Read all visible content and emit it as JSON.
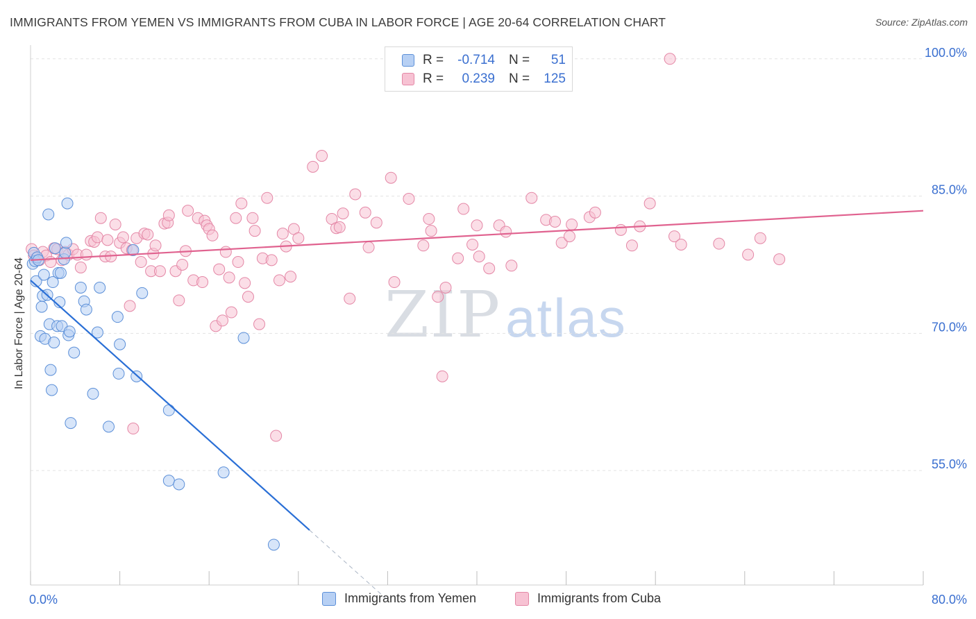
{
  "title": "IMMIGRANTS FROM YEMEN VS IMMIGRANTS FROM CUBA IN LABOR FORCE | AGE 20-64 CORRELATION CHART",
  "source": "Source: ZipAtlas.com",
  "watermark": {
    "zip": "ZIP",
    "atlas": "atlas"
  },
  "legend": {
    "r_label": "R =",
    "n_label": "N =",
    "rows": [
      {
        "r": "-0.714",
        "n": "51"
      },
      {
        "r": "0.239",
        "n": "125"
      }
    ]
  },
  "colors": {
    "yemen_fill": "#b7d0f4",
    "yemen_stroke": "#5b8fd8",
    "yemen_line": "#2a6fd6",
    "cuba_fill": "#f7c2d3",
    "cuba_stroke": "#e487a6",
    "cuba_line": "#e0628f",
    "grid": "#e3e3e3",
    "tick_label": "#3a6fd0"
  },
  "chart_data": {
    "type": "scatter",
    "title": "IMMIGRANTS FROM YEMEN VS IMMIGRANTS FROM CUBA IN LABOR FORCE | AGE 20-64 CORRELATION CHART",
    "xlabel": "",
    "ylabel": "In Labor Force | Age 20-64",
    "xlim": [
      0,
      80
    ],
    "ylim": [
      42.5,
      101.5
    ],
    "x_tick_labels": [
      "0.0%",
      "80.0%"
    ],
    "y_ticks": [
      55,
      70,
      85,
      100
    ],
    "y_tick_labels": [
      "55.0%",
      "70.0%",
      "85.0%",
      "100.0%"
    ],
    "grid": true,
    "legend_position": "bottom-center",
    "series": [
      {
        "name": "Immigrants from Yemen",
        "r": -0.714,
        "n": 51,
        "trend": {
          "x0": 0,
          "y0": 75.8,
          "x1": 25,
          "y1": 48.5,
          "dash_to_x": 32
        },
        "points": [
          [
            0.2,
            77.6
          ],
          [
            0.3,
            78.8
          ],
          [
            0.4,
            77.9
          ],
          [
            0.5,
            75.7
          ],
          [
            0.6,
            78.3
          ],
          [
            0.7,
            78.0
          ],
          [
            0.9,
            69.7
          ],
          [
            1.0,
            72.9
          ],
          [
            1.1,
            74.1
          ],
          [
            1.2,
            76.4
          ],
          [
            1.3,
            69.4
          ],
          [
            1.5,
            74.2
          ],
          [
            1.6,
            83.0
          ],
          [
            1.7,
            71.0
          ],
          [
            1.8,
            66.0
          ],
          [
            1.9,
            63.8
          ],
          [
            2.0,
            75.6
          ],
          [
            2.1,
            69.0
          ],
          [
            2.2,
            79.3
          ],
          [
            2.4,
            70.8
          ],
          [
            2.5,
            76.6
          ],
          [
            2.6,
            73.4
          ],
          [
            2.7,
            76.6
          ],
          [
            2.8,
            70.8
          ],
          [
            3.0,
            78.1
          ],
          [
            3.1,
            78.8
          ],
          [
            3.2,
            79.9
          ],
          [
            3.3,
            84.2
          ],
          [
            3.4,
            69.8
          ],
          [
            3.5,
            70.2
          ],
          [
            3.6,
            60.2
          ],
          [
            3.9,
            67.9
          ],
          [
            4.5,
            75.0
          ],
          [
            4.8,
            73.5
          ],
          [
            5.0,
            72.6
          ],
          [
            5.6,
            63.4
          ],
          [
            6.0,
            70.1
          ],
          [
            6.2,
            75.0
          ],
          [
            7.0,
            59.8
          ],
          [
            7.8,
            71.8
          ],
          [
            7.9,
            65.6
          ],
          [
            8.0,
            68.8
          ],
          [
            9.5,
            65.3
          ],
          [
            10.0,
            74.4
          ],
          [
            12.4,
            61.6
          ],
          [
            12.4,
            53.9
          ],
          [
            13.3,
            53.5
          ],
          [
            17.3,
            54.8
          ],
          [
            19.1,
            69.5
          ],
          [
            21.8,
            46.9
          ],
          [
            9.2,
            79.1
          ]
        ]
      },
      {
        "name": "Immigrants from Cuba",
        "r": 0.239,
        "n": 125,
        "trend": {
          "x0": 0,
          "y0": 78.0,
          "x1": 80,
          "y1": 83.4
        },
        "points": [
          [
            0.1,
            79.2
          ],
          [
            0.3,
            78.5
          ],
          [
            0.5,
            78.2
          ],
          [
            0.8,
            78.0
          ],
          [
            1.1,
            78.9
          ],
          [
            1.4,
            78.5
          ],
          [
            1.8,
            77.8
          ],
          [
            2.1,
            79.3
          ],
          [
            2.4,
            79.2
          ],
          [
            2.8,
            78.0
          ],
          [
            3.1,
            78.9
          ],
          [
            3.4,
            78.6
          ],
          [
            3.8,
            79.2
          ],
          [
            4.2,
            78.6
          ],
          [
            4.5,
            77.2
          ],
          [
            5.0,
            78.6
          ],
          [
            5.4,
            80.1
          ],
          [
            5.7,
            80.0
          ],
          [
            6.0,
            80.5
          ],
          [
            6.3,
            82.6
          ],
          [
            6.7,
            78.4
          ],
          [
            7.2,
            78.4
          ],
          [
            7.6,
            81.9
          ],
          [
            8.0,
            79.9
          ],
          [
            8.3,
            80.5
          ],
          [
            8.6,
            79.3
          ],
          [
            8.9,
            73.0
          ],
          [
            9.1,
            79.1
          ],
          [
            9.2,
            59.6
          ],
          [
            9.5,
            80.4
          ],
          [
            9.9,
            77.8
          ],
          [
            10.2,
            80.9
          ],
          [
            10.5,
            80.8
          ],
          [
            10.8,
            76.8
          ],
          [
            11.0,
            78.7
          ],
          [
            11.2,
            79.6
          ],
          [
            11.6,
            76.8
          ],
          [
            12.0,
            82.0
          ],
          [
            12.3,
            82.1
          ],
          [
            12.4,
            82.9
          ],
          [
            13.0,
            76.8
          ],
          [
            13.3,
            73.6
          ],
          [
            13.6,
            77.5
          ],
          [
            13.9,
            79.0
          ],
          [
            14.1,
            83.4
          ],
          [
            14.6,
            75.8
          ],
          [
            15.0,
            82.6
          ],
          [
            15.4,
            75.6
          ],
          [
            15.6,
            82.3
          ],
          [
            15.8,
            81.8
          ],
          [
            16.0,
            81.4
          ],
          [
            16.3,
            80.7
          ],
          [
            16.6,
            70.8
          ],
          [
            16.9,
            77.0
          ],
          [
            17.2,
            71.4
          ],
          [
            17.5,
            78.9
          ],
          [
            17.8,
            76.1
          ],
          [
            18.0,
            72.3
          ],
          [
            18.4,
            82.6
          ],
          [
            18.6,
            77.8
          ],
          [
            18.9,
            84.2
          ],
          [
            19.2,
            75.5
          ],
          [
            19.5,
            74.0
          ],
          [
            19.9,
            82.6
          ],
          [
            20.1,
            81.2
          ],
          [
            20.5,
            71.0
          ],
          [
            20.8,
            78.2
          ],
          [
            21.2,
            84.8
          ],
          [
            21.6,
            78.0
          ],
          [
            22.0,
            58.8
          ],
          [
            22.3,
            75.8
          ],
          [
            22.6,
            80.9
          ],
          [
            22.9,
            79.5
          ],
          [
            23.3,
            76.2
          ],
          [
            23.6,
            81.4
          ],
          [
            24.0,
            80.4
          ],
          [
            25.3,
            88.2
          ],
          [
            26.1,
            89.4
          ],
          [
            27.0,
            82.5
          ],
          [
            27.4,
            81.5
          ],
          [
            27.7,
            81.6
          ],
          [
            28.0,
            83.1
          ],
          [
            29.1,
            85.2
          ],
          [
            30.0,
            83.2
          ],
          [
            30.3,
            79.4
          ],
          [
            31.0,
            82.1
          ],
          [
            32.3,
            87.0
          ],
          [
            32.6,
            75.6
          ],
          [
            33.9,
            84.7
          ],
          [
            35.2,
            79.6
          ],
          [
            35.7,
            82.5
          ],
          [
            35.9,
            81.2
          ],
          [
            36.5,
            74.0
          ],
          [
            37.2,
            75.0
          ],
          [
            36.9,
            65.3
          ],
          [
            38.3,
            78.2
          ],
          [
            38.8,
            83.6
          ],
          [
            39.6,
            79.7
          ],
          [
            40.0,
            81.8
          ],
          [
            40.2,
            78.4
          ],
          [
            41.1,
            77.1
          ],
          [
            42.0,
            81.8
          ],
          [
            42.6,
            81.1
          ],
          [
            43.1,
            77.4
          ],
          [
            44.9,
            84.8
          ],
          [
            46.2,
            82.4
          ],
          [
            47.0,
            82.2
          ],
          [
            47.6,
            79.9
          ],
          [
            48.3,
            80.6
          ],
          [
            48.5,
            81.9
          ],
          [
            50.1,
            82.7
          ],
          [
            50.6,
            83.2
          ],
          [
            52.9,
            81.3
          ],
          [
            53.9,
            79.6
          ],
          [
            54.6,
            81.7
          ],
          [
            55.5,
            84.2
          ],
          [
            57.7,
            80.6
          ],
          [
            58.3,
            79.7
          ],
          [
            61.7,
            79.8
          ],
          [
            64.3,
            78.6
          ],
          [
            65.4,
            80.4
          ],
          [
            67.1,
            78.1
          ],
          [
            57.3,
            100.0
          ],
          [
            28.6,
            73.8
          ],
          [
            6.9,
            80.2
          ]
        ]
      }
    ]
  }
}
